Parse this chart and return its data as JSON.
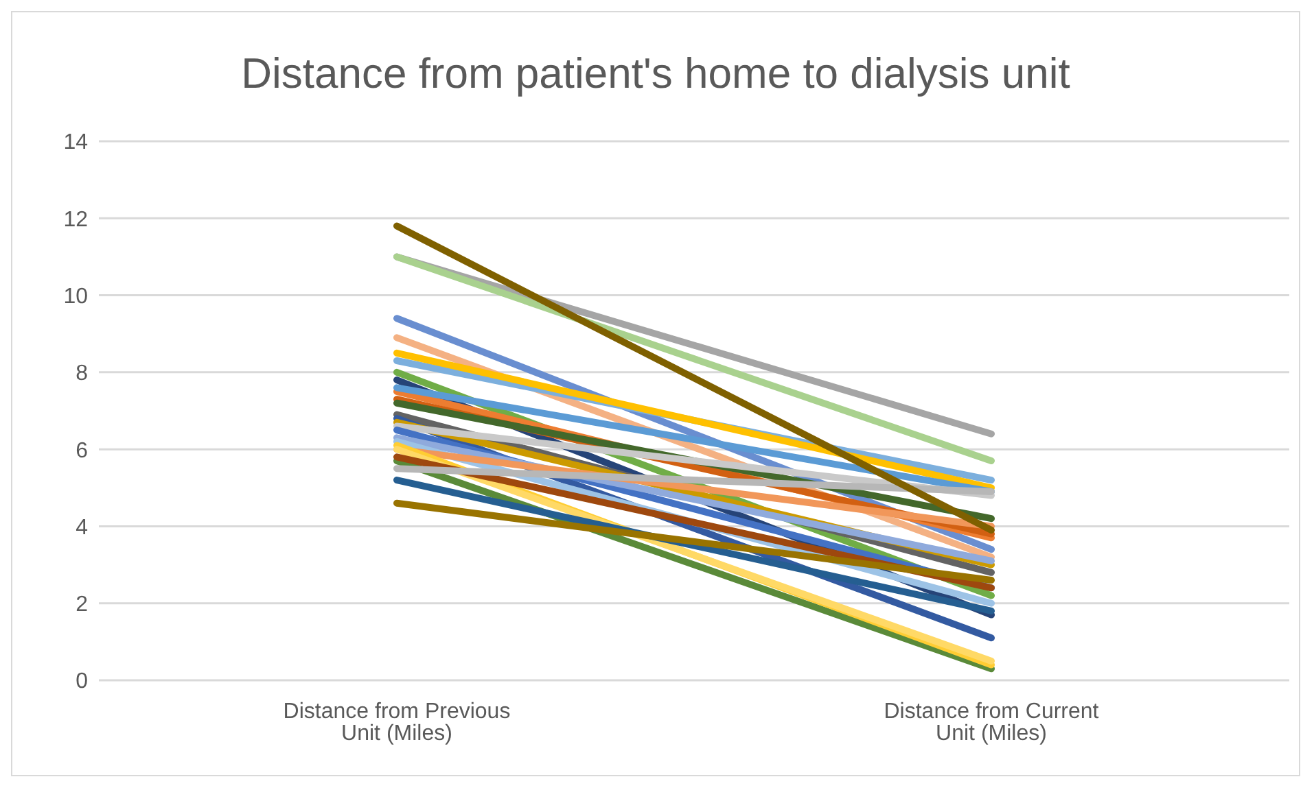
{
  "chart_data": {
    "type": "line",
    "title": "Distance from patient's home to dialysis unit",
    "categories": [
      "Distance from Previous Unit (Miles)",
      "Distance from Current Unit (Miles)"
    ],
    "ylim": [
      0,
      14
    ],
    "yticks": [
      0,
      2,
      4,
      6,
      8,
      10,
      12,
      14
    ],
    "grid": "y",
    "legend": false,
    "marker": "none",
    "series": [
      {
        "color": "#a5a5a5",
        "values": [
          11.0,
          6.4
        ]
      },
      {
        "color": "#a9d18e",
        "values": [
          11.0,
          5.7
        ]
      },
      {
        "color": "#698ed0",
        "values": [
          9.4,
          3.4
        ]
      },
      {
        "color": "#f4b183",
        "values": [
          8.9,
          3.2
        ]
      },
      {
        "color": "#7cafdd",
        "values": [
          8.3,
          5.2
        ]
      },
      {
        "color": "#ffc000",
        "values": [
          8.5,
          5.0
        ]
      },
      {
        "color": "#70ad47",
        "values": [
          8.0,
          2.2
        ]
      },
      {
        "color": "#264478",
        "values": [
          7.8,
          1.7
        ]
      },
      {
        "color": "#ed7d31",
        "values": [
          7.5,
          3.7
        ]
      },
      {
        "color": "#5b9bd5",
        "values": [
          7.6,
          4.9
        ]
      },
      {
        "color": "#d26012",
        "values": [
          7.3,
          3.8
        ]
      },
      {
        "color": "#43682b",
        "values": [
          7.2,
          4.2
        ]
      },
      {
        "color": "#636363",
        "values": [
          6.9,
          2.8
        ]
      },
      {
        "color": "#335aa1",
        "values": [
          6.8,
          1.1
        ]
      },
      {
        "color": "#cc9a00",
        "values": [
          6.7,
          3.0
        ]
      },
      {
        "color": "#c9c9c9",
        "values": [
          6.6,
          4.8
        ]
      },
      {
        "color": "#4472c4",
        "values": [
          6.5,
          2.4
        ]
      },
      {
        "color": "#8faadc",
        "values": [
          6.3,
          3.1
        ]
      },
      {
        "color": "#9dc3e6",
        "values": [
          6.2,
          2.0
        ]
      },
      {
        "color": "#f1975a",
        "values": [
          6.0,
          4.0
        ]
      },
      {
        "color": "#5a8a39",
        "values": [
          5.7,
          0.3
        ]
      },
      {
        "color": "#ffcd33",
        "values": [
          6.1,
          0.4
        ]
      },
      {
        "color": "#ffd966",
        "values": [
          6.0,
          0.5
        ]
      },
      {
        "color": "#9e480e",
        "values": [
          5.8,
          2.4
        ]
      },
      {
        "color": "#b7b7b7",
        "values": [
          5.5,
          4.9
        ]
      },
      {
        "color": "#255e91",
        "values": [
          5.2,
          1.8
        ]
      },
      {
        "color": "#997300",
        "values": [
          4.6,
          2.6
        ]
      },
      {
        "color": "#7f6000",
        "values": [
          11.8,
          3.9
        ]
      }
    ]
  }
}
